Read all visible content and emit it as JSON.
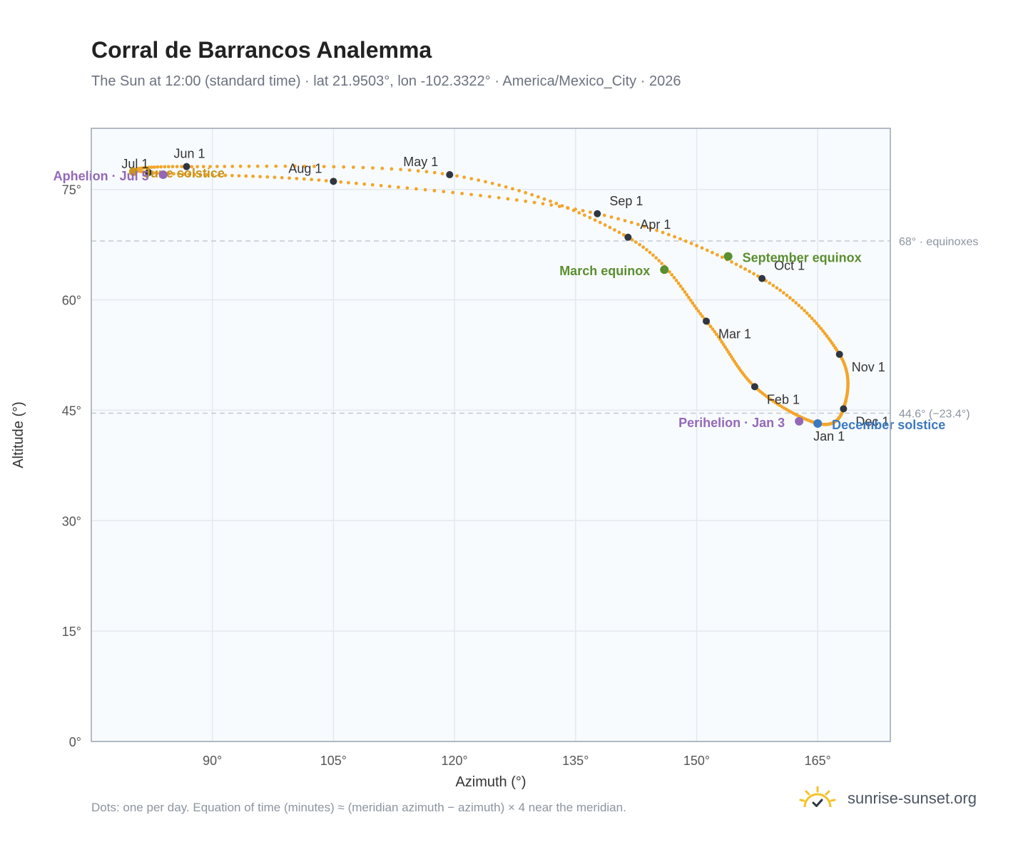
{
  "header": {
    "title": "Corral de Barrancos Analemma",
    "subtitle": "The Sun at 12:00 (standard time) · lat 21.9503°, lon -102.3322° · America/Mexico_City · 2026"
  },
  "footer": {
    "note": "Dots: one per day. Equation of time (minutes) ≈ (meridian azimuth − azimuth) × 4 near the meridian.",
    "brand": "sunrise-sunset.org",
    "brand_icon": "sun-horizon-icon"
  },
  "colors": {
    "path": "#f2a62a",
    "month_dot": "#2f3642",
    "equinox": "#5a8f2e",
    "june_solstice": "#c8961e",
    "december_solstice": "#3c78c0",
    "apsis": "#9468b8",
    "plot_bg": "#f8fbfe",
    "grid": "#e3e9ef",
    "ref_line": "#c4cad2"
  },
  "chart_data": {
    "type": "scatter",
    "xlabel": "Azimuth (°)",
    "ylabel": "Altitude (°)",
    "xlim": [
      75,
      174
    ],
    "ylim": [
      0,
      83.3
    ],
    "xticks": [
      90,
      105,
      120,
      135,
      150,
      165
    ],
    "xtick_labels": [
      "90°",
      "105°",
      "120°",
      "135°",
      "150°",
      "165°"
    ],
    "yticks": [
      0,
      15,
      30,
      45,
      60,
      75
    ],
    "ytick_labels": [
      "0°",
      "15°",
      "30°",
      "45°",
      "60°",
      "75°"
    ],
    "grid": true,
    "reference_lines": [
      {
        "y": 68.0,
        "label": "68° · equinoxes"
      },
      {
        "y": 44.6,
        "label": "44.6° (−23.4°)"
      }
    ],
    "month_points": [
      {
        "label": "Jan 1",
        "x": 165.0,
        "y": 43.2
      },
      {
        "label": "Feb 1",
        "x": 157.2,
        "y": 48.2
      },
      {
        "label": "Mar 1",
        "x": 151.2,
        "y": 57.1
      },
      {
        "label": "Apr 1",
        "x": 141.5,
        "y": 68.5
      },
      {
        "label": "May 1",
        "x": 119.4,
        "y": 77.0
      },
      {
        "label": "Jun 1",
        "x": 86.8,
        "y": 78.1
      },
      {
        "label": "Jul 1",
        "x": 82.1,
        "y": 77.3
      },
      {
        "label": "Aug 1",
        "x": 105.0,
        "y": 76.1
      },
      {
        "label": "Sep 1",
        "x": 137.7,
        "y": 71.7
      },
      {
        "label": "Oct 1",
        "x": 158.1,
        "y": 62.9
      },
      {
        "label": "Nov 1",
        "x": 167.7,
        "y": 52.6
      },
      {
        "label": "Dec 1",
        "x": 168.2,
        "y": 45.2
      }
    ],
    "events": [
      {
        "label": "March equinox",
        "x": 146.0,
        "y": 64.1,
        "kind": "equinox"
      },
      {
        "label": "September equinox",
        "x": 153.9,
        "y": 65.9,
        "kind": "equinox"
      },
      {
        "label": "June solstice",
        "x": 80.2,
        "y": 77.4,
        "kind": "june_solstice"
      },
      {
        "label": "December solstice",
        "x": 165.0,
        "y": 43.2,
        "kind": "december_solstice"
      },
      {
        "label": "Aphelion · Jul 5",
        "x": 83.9,
        "y": 77.0,
        "kind": "apsis"
      },
      {
        "label": "Perihelion · Jan 3",
        "x": 162.7,
        "y": 43.5,
        "kind": "apsis"
      }
    ]
  }
}
